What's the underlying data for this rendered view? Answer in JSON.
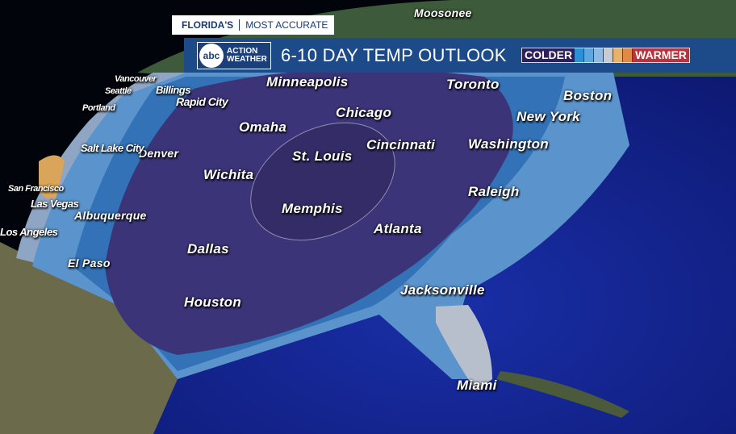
{
  "header": {
    "tag_bold": "FLORIDA'S",
    "tag_text": "MOST ACCURATE",
    "logo_abc": "abc",
    "logo_line1": "ACTION",
    "logo_line2": "WEATHER",
    "title": "6-10 DAY TEMP OUTLOOK"
  },
  "legend": {
    "cold_label": "COLDER",
    "warm_label": "WARMER",
    "cold_label_color": "#2b1f5e",
    "warm_label_color": "#b8343a",
    "swatches": [
      "#2f8fd6",
      "#5ea6e0",
      "#8db9e4",
      "#c8ccd2",
      "#e9b26a",
      "#e08a45"
    ]
  },
  "cities": [
    "Moosonee",
    "Minneapolis",
    "Toronto",
    "Boston",
    "Chicago",
    "New York",
    "Omaha",
    "St. Louis",
    "Cincinnati",
    "Washington",
    "Wichita",
    "Memphis",
    "Raleigh",
    "Atlanta",
    "Dallas",
    "Jacksonville",
    "Houston",
    "El Paso",
    "Albuquerque",
    "Denver",
    "Salt Lake City",
    "Las Vegas",
    "San Francisco",
    "Los Angeles",
    "Billings",
    "Rapid City",
    "Portland",
    "Seattle",
    "Vancouver",
    "Miami"
  ]
}
